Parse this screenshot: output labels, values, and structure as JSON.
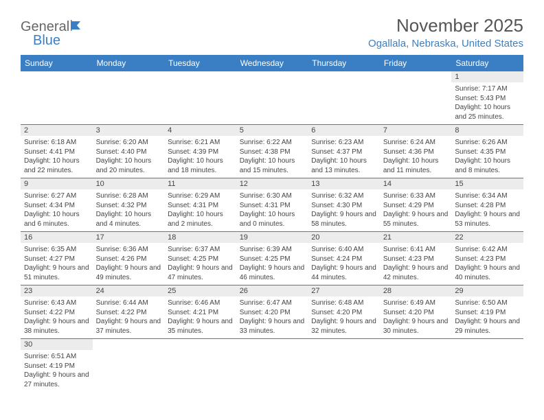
{
  "logo": {
    "general": "General",
    "blue": "Blue"
  },
  "title": "November 2025",
  "location": "Ogallala, Nebraska, United States",
  "colors": {
    "header_bg": "#3a7fc4",
    "header_text": "#ffffff",
    "daynum_bg": "#ececec",
    "border": "#3a7fc4",
    "title_color": "#555555",
    "location_color": "#3a7fc4",
    "text_color": "#444444",
    "page_bg": "#ffffff"
  },
  "headers": [
    "Sunday",
    "Monday",
    "Tuesday",
    "Wednesday",
    "Thursday",
    "Friday",
    "Saturday"
  ],
  "weeks": [
    [
      null,
      null,
      null,
      null,
      null,
      null,
      {
        "n": "1",
        "sr": "Sunrise: 7:17 AM",
        "ss": "Sunset: 5:43 PM",
        "dl": "Daylight: 10 hours and 25 minutes."
      }
    ],
    [
      {
        "n": "2",
        "sr": "Sunrise: 6:18 AM",
        "ss": "Sunset: 4:41 PM",
        "dl": "Daylight: 10 hours and 22 minutes."
      },
      {
        "n": "3",
        "sr": "Sunrise: 6:20 AM",
        "ss": "Sunset: 4:40 PM",
        "dl": "Daylight: 10 hours and 20 minutes."
      },
      {
        "n": "4",
        "sr": "Sunrise: 6:21 AM",
        "ss": "Sunset: 4:39 PM",
        "dl": "Daylight: 10 hours and 18 minutes."
      },
      {
        "n": "5",
        "sr": "Sunrise: 6:22 AM",
        "ss": "Sunset: 4:38 PM",
        "dl": "Daylight: 10 hours and 15 minutes."
      },
      {
        "n": "6",
        "sr": "Sunrise: 6:23 AM",
        "ss": "Sunset: 4:37 PM",
        "dl": "Daylight: 10 hours and 13 minutes."
      },
      {
        "n": "7",
        "sr": "Sunrise: 6:24 AM",
        "ss": "Sunset: 4:36 PM",
        "dl": "Daylight: 10 hours and 11 minutes."
      },
      {
        "n": "8",
        "sr": "Sunrise: 6:26 AM",
        "ss": "Sunset: 4:35 PM",
        "dl": "Daylight: 10 hours and 8 minutes."
      }
    ],
    [
      {
        "n": "9",
        "sr": "Sunrise: 6:27 AM",
        "ss": "Sunset: 4:34 PM",
        "dl": "Daylight: 10 hours and 6 minutes."
      },
      {
        "n": "10",
        "sr": "Sunrise: 6:28 AM",
        "ss": "Sunset: 4:32 PM",
        "dl": "Daylight: 10 hours and 4 minutes."
      },
      {
        "n": "11",
        "sr": "Sunrise: 6:29 AM",
        "ss": "Sunset: 4:31 PM",
        "dl": "Daylight: 10 hours and 2 minutes."
      },
      {
        "n": "12",
        "sr": "Sunrise: 6:30 AM",
        "ss": "Sunset: 4:31 PM",
        "dl": "Daylight: 10 hours and 0 minutes."
      },
      {
        "n": "13",
        "sr": "Sunrise: 6:32 AM",
        "ss": "Sunset: 4:30 PM",
        "dl": "Daylight: 9 hours and 58 minutes."
      },
      {
        "n": "14",
        "sr": "Sunrise: 6:33 AM",
        "ss": "Sunset: 4:29 PM",
        "dl": "Daylight: 9 hours and 55 minutes."
      },
      {
        "n": "15",
        "sr": "Sunrise: 6:34 AM",
        "ss": "Sunset: 4:28 PM",
        "dl": "Daylight: 9 hours and 53 minutes."
      }
    ],
    [
      {
        "n": "16",
        "sr": "Sunrise: 6:35 AM",
        "ss": "Sunset: 4:27 PM",
        "dl": "Daylight: 9 hours and 51 minutes."
      },
      {
        "n": "17",
        "sr": "Sunrise: 6:36 AM",
        "ss": "Sunset: 4:26 PM",
        "dl": "Daylight: 9 hours and 49 minutes."
      },
      {
        "n": "18",
        "sr": "Sunrise: 6:37 AM",
        "ss": "Sunset: 4:25 PM",
        "dl": "Daylight: 9 hours and 47 minutes."
      },
      {
        "n": "19",
        "sr": "Sunrise: 6:39 AM",
        "ss": "Sunset: 4:25 PM",
        "dl": "Daylight: 9 hours and 46 minutes."
      },
      {
        "n": "20",
        "sr": "Sunrise: 6:40 AM",
        "ss": "Sunset: 4:24 PM",
        "dl": "Daylight: 9 hours and 44 minutes."
      },
      {
        "n": "21",
        "sr": "Sunrise: 6:41 AM",
        "ss": "Sunset: 4:23 PM",
        "dl": "Daylight: 9 hours and 42 minutes."
      },
      {
        "n": "22",
        "sr": "Sunrise: 6:42 AM",
        "ss": "Sunset: 4:23 PM",
        "dl": "Daylight: 9 hours and 40 minutes."
      }
    ],
    [
      {
        "n": "23",
        "sr": "Sunrise: 6:43 AM",
        "ss": "Sunset: 4:22 PM",
        "dl": "Daylight: 9 hours and 38 minutes."
      },
      {
        "n": "24",
        "sr": "Sunrise: 6:44 AM",
        "ss": "Sunset: 4:22 PM",
        "dl": "Daylight: 9 hours and 37 minutes."
      },
      {
        "n": "25",
        "sr": "Sunrise: 6:46 AM",
        "ss": "Sunset: 4:21 PM",
        "dl": "Daylight: 9 hours and 35 minutes."
      },
      {
        "n": "26",
        "sr": "Sunrise: 6:47 AM",
        "ss": "Sunset: 4:20 PM",
        "dl": "Daylight: 9 hours and 33 minutes."
      },
      {
        "n": "27",
        "sr": "Sunrise: 6:48 AM",
        "ss": "Sunset: 4:20 PM",
        "dl": "Daylight: 9 hours and 32 minutes."
      },
      {
        "n": "28",
        "sr": "Sunrise: 6:49 AM",
        "ss": "Sunset: 4:20 PM",
        "dl": "Daylight: 9 hours and 30 minutes."
      },
      {
        "n": "29",
        "sr": "Sunrise: 6:50 AM",
        "ss": "Sunset: 4:19 PM",
        "dl": "Daylight: 9 hours and 29 minutes."
      }
    ],
    [
      {
        "n": "30",
        "sr": "Sunrise: 6:51 AM",
        "ss": "Sunset: 4:19 PM",
        "dl": "Daylight: 9 hours and 27 minutes."
      },
      null,
      null,
      null,
      null,
      null,
      null
    ]
  ]
}
